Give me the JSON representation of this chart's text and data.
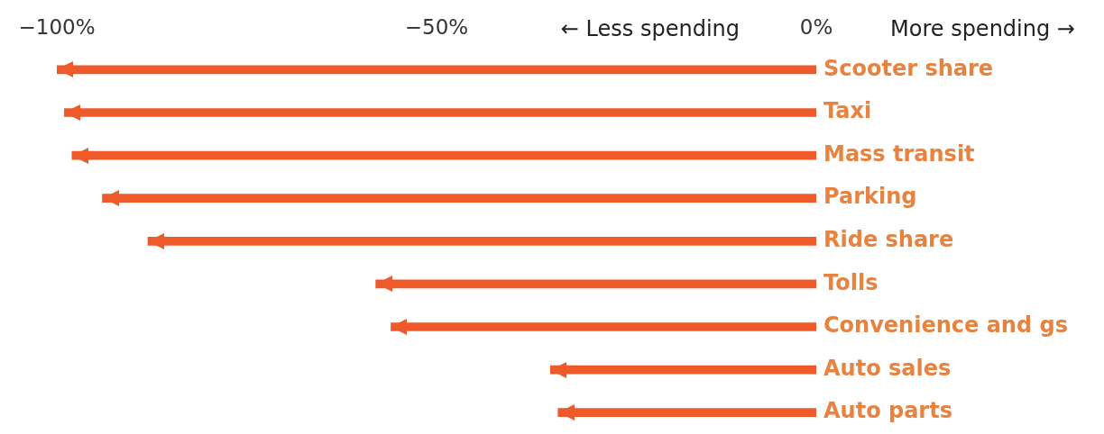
{
  "chart_data": {
    "type": "bar",
    "orientation": "horizontal",
    "categories": [
      "Scooter share",
      "Taxi",
      "Mass transit",
      "Parking",
      "Ride share",
      "Tolls",
      "Convenience and gs",
      "Auto sales",
      "Auto parts"
    ],
    "values": [
      -100,
      -99,
      -98,
      -94,
      -88,
      -58,
      -56,
      -35,
      -34
    ],
    "color": "#ee5a2a",
    "xlim": [
      -100,
      0
    ],
    "xticks": [
      {
        "value": -100,
        "label": "−100%"
      },
      {
        "value": -50,
        "label": "−50%"
      },
      {
        "value": 0,
        "label": "0%"
      }
    ],
    "annotations": [
      "← Less spending",
      "More spending →"
    ],
    "grid": false,
    "legend": false
  }
}
